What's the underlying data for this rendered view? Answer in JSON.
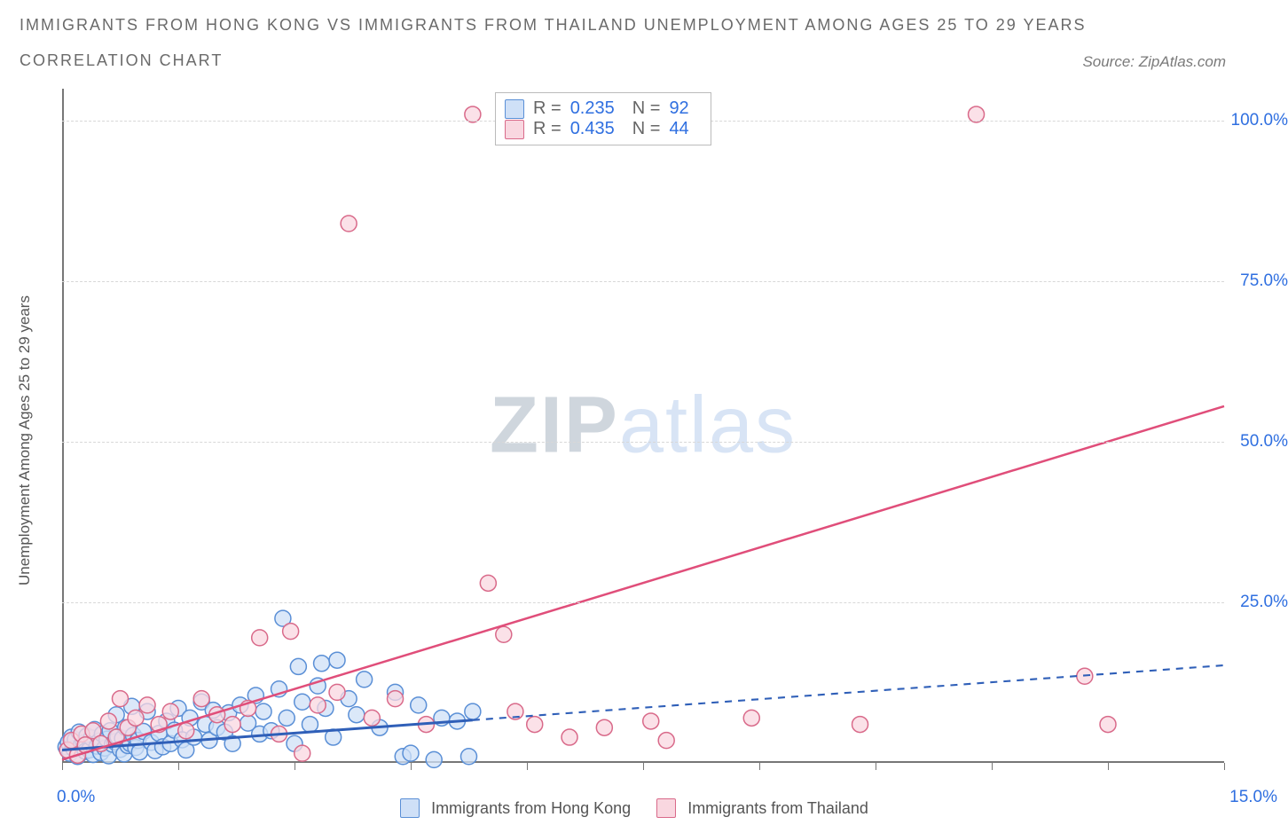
{
  "title_line1": "IMMIGRANTS FROM HONG KONG VS IMMIGRANTS FROM THAILAND UNEMPLOYMENT AMONG AGES 25 TO 29 YEARS",
  "title_line2": "CORRELATION CHART",
  "source": "Source: ZipAtlas.com",
  "y_axis_title": "Unemployment Among Ages 25 to 29 years",
  "watermark_zip": "ZIP",
  "watermark_atlas": "atlas",
  "chart": {
    "type": "scatter",
    "xlim": [
      0,
      15
    ],
    "ylim": [
      0,
      105
    ],
    "x_start_label": "0.0%",
    "x_end_label": "15.0%",
    "y_tick_labels": [
      "25.0%",
      "50.0%",
      "75.0%",
      "100.0%"
    ],
    "y_tick_values": [
      25,
      50,
      75,
      100
    ],
    "x_tick_values": [
      0,
      1.5,
      3,
      4.5,
      6,
      7.5,
      9,
      10.5,
      12,
      13.5,
      15
    ],
    "grid_values": [
      25,
      50,
      75,
      100
    ],
    "background_color": "#ffffff",
    "grid_color": "#d8d8d8",
    "axis_color": "#777777",
    "value_label_color": "#2f6fe0",
    "axis_title_color": "#555555",
    "series": [
      {
        "key": "hk",
        "label": "Immigrants from Hong Kong",
        "R": "0.235",
        "N": "92",
        "color_fill": "#cfe0f7",
        "color_stroke": "#5a8fd6",
        "marker_radius": 9,
        "trend": {
          "slope": 0.88,
          "intercept": 2.0,
          "x_solid_end": 5.3,
          "color": "#2f5fb8",
          "width": 3,
          "dash": "8 7"
        },
        "points": [
          [
            0.05,
            2.5
          ],
          [
            0.08,
            3.2
          ],
          [
            0.1,
            1.5
          ],
          [
            0.12,
            4.0
          ],
          [
            0.15,
            2.2
          ],
          [
            0.17,
            3.6
          ],
          [
            0.2,
            1.0
          ],
          [
            0.22,
            4.8
          ],
          [
            0.25,
            2.8
          ],
          [
            0.28,
            3.1
          ],
          [
            0.3,
            1.8
          ],
          [
            0.32,
            4.2
          ],
          [
            0.35,
            2.0
          ],
          [
            0.38,
            3.9
          ],
          [
            0.4,
            1.3
          ],
          [
            0.42,
            5.2
          ],
          [
            0.45,
            2.6
          ],
          [
            0.48,
            3.4
          ],
          [
            0.5,
            1.6
          ],
          [
            0.52,
            4.5
          ],
          [
            0.55,
            2.3
          ],
          [
            0.58,
            3.7
          ],
          [
            0.6,
            1.1
          ],
          [
            0.62,
            5.0
          ],
          [
            0.65,
            2.9
          ],
          [
            0.68,
            3.3
          ],
          [
            0.7,
            7.5
          ],
          [
            0.72,
            4.1
          ],
          [
            0.75,
            2.1
          ],
          [
            0.78,
            3.8
          ],
          [
            0.8,
            1.4
          ],
          [
            0.82,
            5.5
          ],
          [
            0.85,
            2.7
          ],
          [
            0.88,
            3.0
          ],
          [
            0.9,
            8.8
          ],
          [
            0.92,
            4.3
          ],
          [
            0.95,
            2.4
          ],
          [
            0.98,
            3.5
          ],
          [
            1.0,
            1.7
          ],
          [
            1.05,
            4.9
          ],
          [
            1.1,
            8.0
          ],
          [
            1.15,
            3.2
          ],
          [
            1.2,
            1.9
          ],
          [
            1.25,
            4.6
          ],
          [
            1.3,
            2.5
          ],
          [
            1.35,
            6.5
          ],
          [
            1.4,
            3.0
          ],
          [
            1.45,
            5.1
          ],
          [
            1.5,
            8.5
          ],
          [
            1.55,
            3.6
          ],
          [
            1.6,
            2.0
          ],
          [
            1.65,
            7.0
          ],
          [
            1.7,
            4.0
          ],
          [
            1.8,
            9.5
          ],
          [
            1.85,
            6.0
          ],
          [
            1.9,
            3.5
          ],
          [
            1.95,
            8.2
          ],
          [
            2.0,
            5.5
          ],
          [
            2.1,
            4.8
          ],
          [
            2.15,
            7.8
          ],
          [
            2.2,
            3.0
          ],
          [
            2.3,
            9.0
          ],
          [
            2.4,
            6.2
          ],
          [
            2.5,
            10.5
          ],
          [
            2.55,
            4.5
          ],
          [
            2.6,
            8.0
          ],
          [
            2.7,
            5.0
          ],
          [
            2.8,
            11.5
          ],
          [
            2.85,
            22.5
          ],
          [
            2.9,
            7.0
          ],
          [
            3.0,
            3.0
          ],
          [
            3.05,
            15.0
          ],
          [
            3.1,
            9.5
          ],
          [
            3.2,
            6.0
          ],
          [
            3.3,
            12.0
          ],
          [
            3.35,
            15.5
          ],
          [
            3.4,
            8.5
          ],
          [
            3.5,
            4.0
          ],
          [
            3.55,
            16.0
          ],
          [
            3.7,
            10.0
          ],
          [
            3.8,
            7.5
          ],
          [
            3.9,
            13.0
          ],
          [
            4.1,
            5.5
          ],
          [
            4.3,
            11.0
          ],
          [
            4.4,
            1.0
          ],
          [
            4.5,
            1.5
          ],
          [
            4.6,
            9.0
          ],
          [
            4.8,
            0.5
          ],
          [
            4.9,
            7.0
          ],
          [
            5.1,
            6.5
          ],
          [
            5.25,
            1.0
          ],
          [
            5.3,
            8.0
          ]
        ]
      },
      {
        "key": "th",
        "label": "Immigrants from Thailand",
        "R": "0.435",
        "N": "44",
        "color_fill": "#f9d7e0",
        "color_stroke": "#d96a8a",
        "marker_radius": 9,
        "trend": {
          "slope": 3.67,
          "intercept": 0.5,
          "x_solid_end": 15,
          "color": "#e04e7a",
          "width": 2.5,
          "dash": null
        },
        "points": [
          [
            0.07,
            2.0
          ],
          [
            0.12,
            3.5
          ],
          [
            0.2,
            1.2
          ],
          [
            0.25,
            4.5
          ],
          [
            0.3,
            2.8
          ],
          [
            0.4,
            5.0
          ],
          [
            0.5,
            3.0
          ],
          [
            0.6,
            6.5
          ],
          [
            0.7,
            4.0
          ],
          [
            0.75,
            10.0
          ],
          [
            0.85,
            5.5
          ],
          [
            0.95,
            7.0
          ],
          [
            1.1,
            9.0
          ],
          [
            1.25,
            6.0
          ],
          [
            1.4,
            8.0
          ],
          [
            1.6,
            5.0
          ],
          [
            1.8,
            10.0
          ],
          [
            2.0,
            7.5
          ],
          [
            2.2,
            6.0
          ],
          [
            2.4,
            8.5
          ],
          [
            2.55,
            19.5
          ],
          [
            2.8,
            4.5
          ],
          [
            2.95,
            20.5
          ],
          [
            3.1,
            1.5
          ],
          [
            3.3,
            9.0
          ],
          [
            3.55,
            11.0
          ],
          [
            3.7,
            84.0
          ],
          [
            4.0,
            7.0
          ],
          [
            4.3,
            10.0
          ],
          [
            4.7,
            6.0
          ],
          [
            5.3,
            101.0
          ],
          [
            5.5,
            28.0
          ],
          [
            5.7,
            20.0
          ],
          [
            5.85,
            8.0
          ],
          [
            6.1,
            6.0
          ],
          [
            6.55,
            4.0
          ],
          [
            7.0,
            5.5
          ],
          [
            7.6,
            6.5
          ],
          [
            7.8,
            3.5
          ],
          [
            8.9,
            7.0
          ],
          [
            10.3,
            6.0
          ],
          [
            11.8,
            101.0
          ],
          [
            13.2,
            13.5
          ],
          [
            13.5,
            6.0
          ]
        ]
      }
    ]
  },
  "bottom_legend": {
    "items": [
      {
        "swatch_fill": "#cfe0f7",
        "swatch_stroke": "#5a8fd6",
        "label": "Immigrants from Hong Kong"
      },
      {
        "swatch_fill": "#f9d7e0",
        "swatch_stroke": "#d96a8a",
        "label": "Immigrants from Thailand"
      }
    ]
  },
  "stats_box": {
    "R_label": "R =",
    "N_label": "N ="
  }
}
